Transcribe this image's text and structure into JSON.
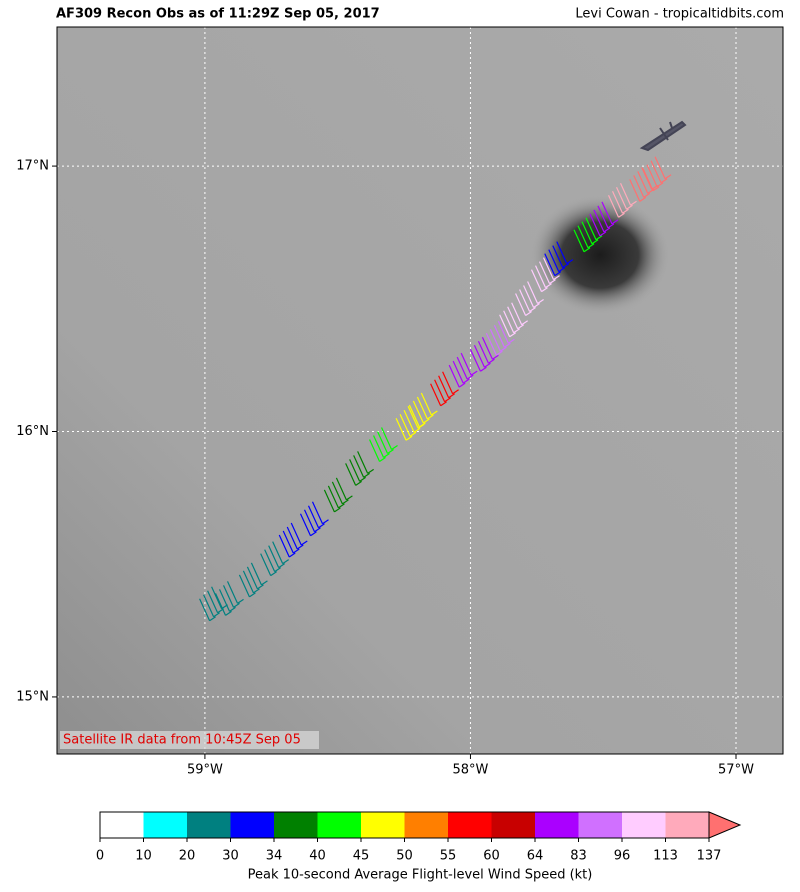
{
  "title": "AF309 Recon Obs as of 11:29Z Sep 05, 2017",
  "credit": "Levi Cowan - tropicaltidbits.com",
  "note": "Satellite IR data from 10:45Z Sep 05",
  "map": {
    "xlim": [
      -59.557,
      -56.823
    ],
    "ylim": [
      14.785,
      17.524
    ],
    "xticks": [
      {
        "value": -59,
        "label": "59°W"
      },
      {
        "value": -58,
        "label": "58°W"
      },
      {
        "value": -57,
        "label": "57°W"
      }
    ],
    "yticks": [
      {
        "value": 15,
        "label": "15°N"
      },
      {
        "value": 16,
        "label": "16°N"
      },
      {
        "value": 17,
        "label": "17°N"
      }
    ],
    "grid": true,
    "observations": [
      {
        "lon": -59.02,
        "lat": 15.37,
        "wind": 28
      },
      {
        "lon": -58.96,
        "lat": 15.39,
        "wind": 25
      },
      {
        "lon": -58.87,
        "lat": 15.46,
        "wind": 22
      },
      {
        "lon": -58.79,
        "lat": 15.54,
        "wind": 25
      },
      {
        "lon": -58.72,
        "lat": 15.61,
        "wind": 32
      },
      {
        "lon": -58.64,
        "lat": 15.69,
        "wind": 33
      },
      {
        "lon": -58.55,
        "lat": 15.78,
        "wind": 38
      },
      {
        "lon": -58.47,
        "lat": 15.88,
        "wind": 36
      },
      {
        "lon": -58.38,
        "lat": 15.97,
        "wind": 42
      },
      {
        "lon": -58.28,
        "lat": 16.05,
        "wind": 48
      },
      {
        "lon": -58.23,
        "lat": 16.1,
        "wind": 47
      },
      {
        "lon": -58.15,
        "lat": 16.18,
        "wind": 58
      },
      {
        "lon": -58.08,
        "lat": 16.25,
        "wind": 70
      },
      {
        "lon": -58.0,
        "lat": 16.31,
        "wind": 75
      },
      {
        "lon": -57.94,
        "lat": 16.37,
        "wind": 90
      },
      {
        "lon": -57.89,
        "lat": 16.44,
        "wind": 100
      },
      {
        "lon": -57.83,
        "lat": 16.52,
        "wind": 105
      },
      {
        "lon": -57.77,
        "lat": 16.61,
        "wind": 98
      },
      {
        "lon": -57.72,
        "lat": 16.67,
        "wind": 32
      },
      {
        "lon": -57.61,
        "lat": 16.76,
        "wind": 40
      },
      {
        "lon": -57.55,
        "lat": 16.82,
        "wind": 80
      },
      {
        "lon": -57.48,
        "lat": 16.89,
        "wind": 120
      },
      {
        "lon": -57.4,
        "lat": 16.95,
        "wind": 140
      },
      {
        "lon": -57.35,
        "lat": 16.99,
        "wind": 145
      }
    ]
  },
  "colorbar": {
    "label": "Peak 10-second Average Flight-level Wind Speed (kt)",
    "ticks": [
      0,
      10,
      20,
      30,
      34,
      40,
      45,
      50,
      55,
      60,
      64,
      83,
      96,
      113,
      137
    ],
    "colors": [
      "#ffffff",
      "#00ffff",
      "#008080",
      "#0000ff",
      "#008000",
      "#00ff00",
      "#ffff00",
      "#ff7f00",
      "#ff0000",
      "#c80000",
      "#aa00ff",
      "#d070ff",
      "#ffccff",
      "#ffaabb"
    ],
    "extend_color": "#ff7070"
  }
}
